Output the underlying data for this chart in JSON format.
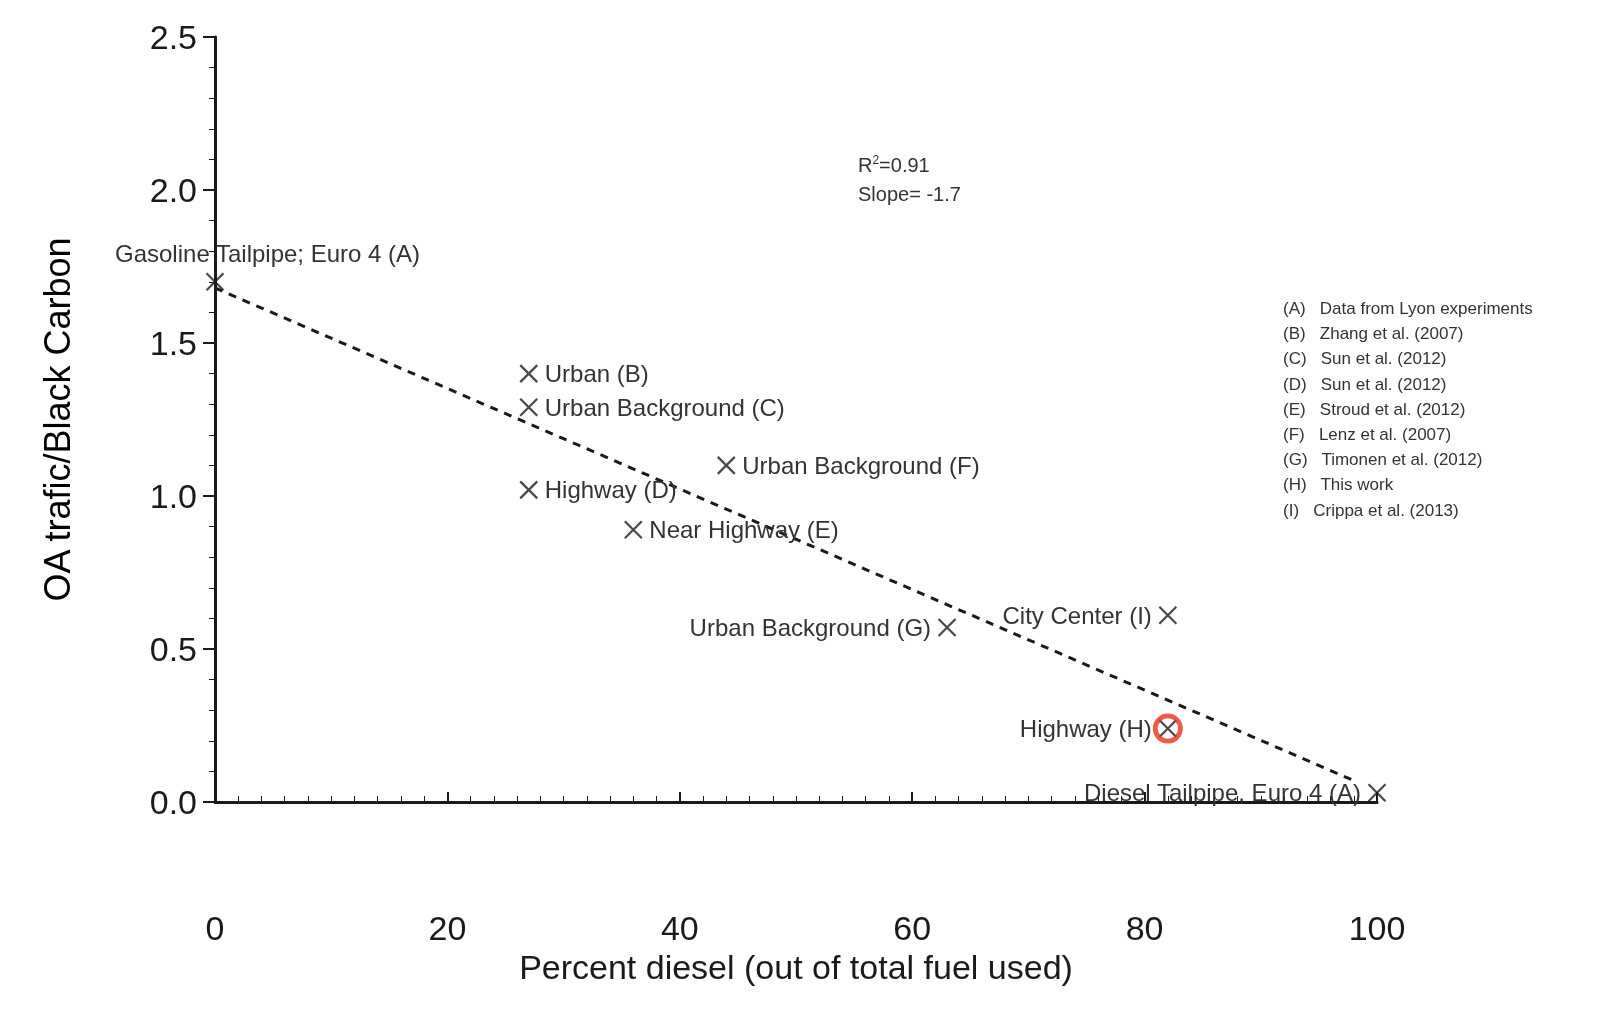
{
  "chart_data": {
    "type": "scatter",
    "xlabel": "Percent diesel (out of total fuel used)",
    "ylabel": "OA trafic/Black Carbon",
    "xlim": [
      0,
      100
    ],
    "xticks": [
      0,
      20,
      40,
      60,
      80,
      100
    ],
    "ylim": [
      0,
      2.5
    ],
    "yticks": [
      {
        "value": 0,
        "label": "0.0"
      },
      {
        "value": 0.5,
        "label": "0.5"
      },
      {
        "value": 1,
        "label": "1.0"
      },
      {
        "value": 1.5,
        "label": "1.5"
      },
      {
        "value": 2,
        "label": "2.0"
      },
      {
        "value": 2.5,
        "label": "2.5"
      }
    ],
    "grid": false,
    "series": [
      {
        "marker": "cross",
        "color": "#1a1a1a",
        "x": [
          0,
          27,
          27,
          27,
          36,
          44,
          63,
          82,
          82,
          100
        ],
        "values": [
          1.7,
          1.4,
          1.29,
          1.02,
          0.89,
          1.1,
          0.57,
          0.61,
          0.24,
          0.03
        ]
      },
      {
        "type": "line",
        "line_style": "dashed",
        "marker": "none",
        "color": "#1a1a1a",
        "x": [
          0,
          98
        ],
        "values": [
          1.68,
          0.07
        ]
      },
      {
        "marker": "circle",
        "color": "#e8321e",
        "x": [
          82
        ],
        "values": [
          0.24
        ]
      }
    ],
    "annotations": [
      {
        "text": "Gasoline Tailpipe; Euro 4 (A)",
        "x": 0,
        "y": 1.7
      },
      {
        "text": "Urban (B)",
        "x": 27,
        "y": 1.4
      },
      {
        "text": "Urban Background (C)",
        "x": 27,
        "y": 1.29
      },
      {
        "text": "Highway (D)",
        "x": 27,
        "y": 1.02
      },
      {
        "text": "Near Highway (E)",
        "x": 36,
        "y": 0.89
      },
      {
        "text": "Urban Background (F)",
        "x": 44,
        "y": 1.1
      },
      {
        "text": "Urban Background (G)",
        "x": 63,
        "y": 0.57
      },
      {
        "text": "City Center (I)",
        "x": 82,
        "y": 0.61
      },
      {
        "text": "Highway (H)",
        "x": 82,
        "y": 0.24
      },
      {
        "text": "Diesel Tailpipe, Euro 4 (A)",
        "x": 100,
        "y": 0.03
      },
      "R$^{2}$=0.91",
      "Slope= -1.7",
      "(A)   Data from Lyon experiments",
      "(B)   Zhang et al. (2007)",
      "(C)   Sun et al. (2012)",
      "(D)   Sun et al. (2012)",
      "(E)   Stroud et al. (2012)",
      "(F)   Lenz et al. (2007)",
      "(G)   Timonen et al. (2012)",
      "(H)   This work",
      "(I)   Crippa et al. (2013)"
    ]
  }
}
